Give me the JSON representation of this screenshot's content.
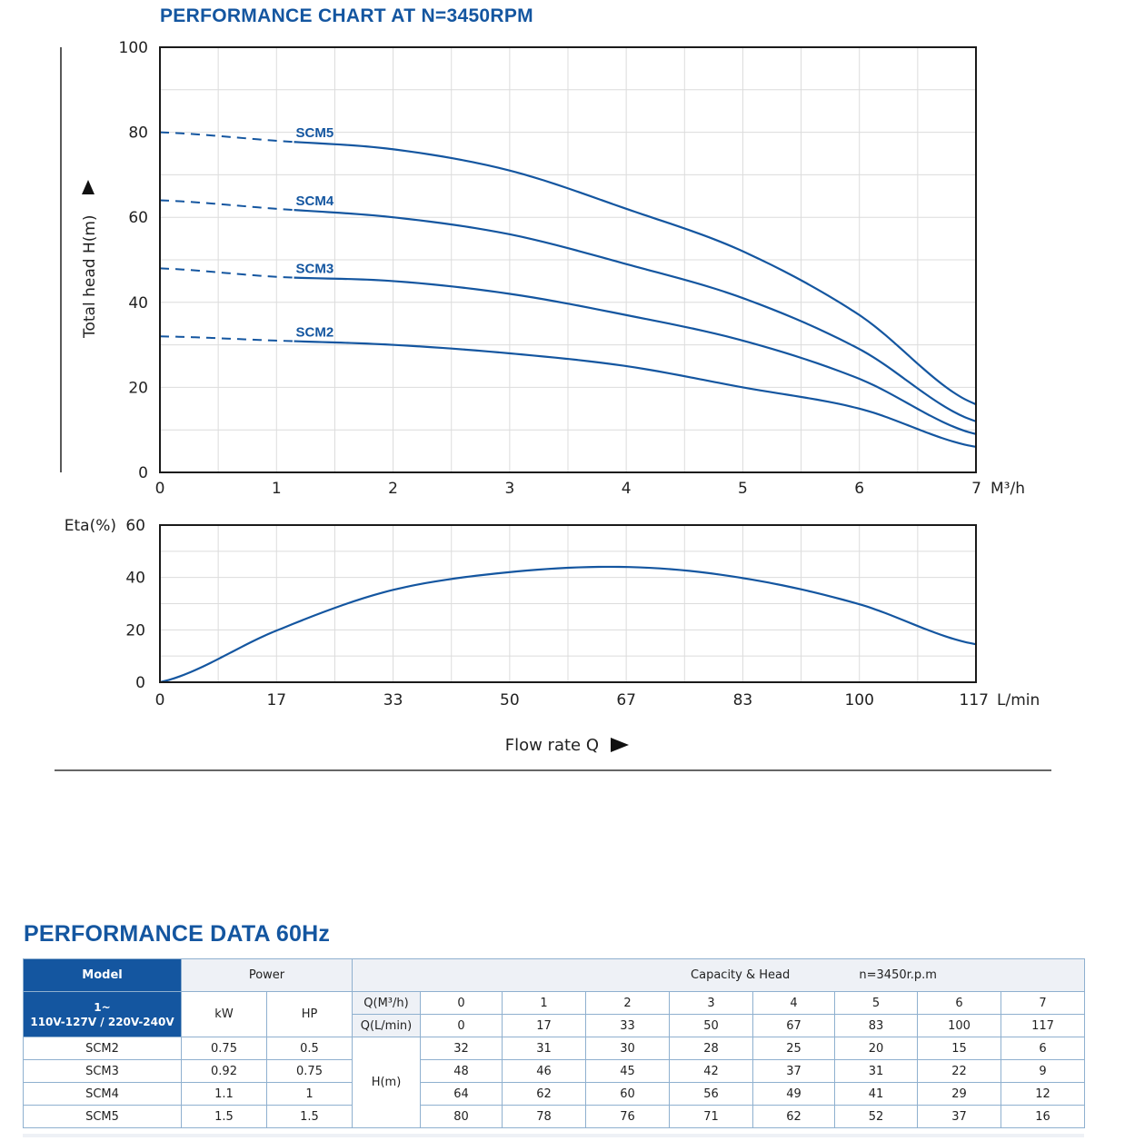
{
  "chart_title": "PERFORMANCE CHART AT N=3450RPM",
  "chart_data": [
    {
      "type": "line",
      "title": "PERFORMANCE CHART AT N=3450RPM",
      "xlabel": "M³/h",
      "ylabel": "Total head H(m)",
      "xlim": [
        0,
        7
      ],
      "ylim": [
        0,
        100
      ],
      "x_ticks": [
        "0",
        "1",
        "2",
        "3",
        "4",
        "5",
        "6",
        "7"
      ],
      "y_ticks": [
        "0",
        "20",
        "40",
        "60",
        "80",
        "100"
      ],
      "grid": true,
      "shutoff_segment_dashed_until_x": 1.15,
      "series": [
        {
          "name": "SCM5",
          "x": [
            0,
            1,
            2,
            3,
            4,
            5,
            6,
            7
          ],
          "y": [
            80,
            78,
            76,
            71,
            62,
            52,
            37,
            16
          ]
        },
        {
          "name": "SCM4",
          "x": [
            0,
            1,
            2,
            3,
            4,
            5,
            6,
            7
          ],
          "y": [
            64,
            62,
            60,
            56,
            49,
            41,
            29,
            12
          ]
        },
        {
          "name": "SCM3",
          "x": [
            0,
            1,
            2,
            3,
            4,
            5,
            6,
            7
          ],
          "y": [
            48,
            46,
            45,
            42,
            37,
            31,
            22,
            9
          ]
        },
        {
          "name": "SCM2",
          "x": [
            0,
            1,
            2,
            3,
            4,
            5,
            6,
            7
          ],
          "y": [
            32,
            31,
            30,
            28,
            25,
            20,
            15,
            6
          ]
        }
      ]
    },
    {
      "type": "line",
      "xlabel": "L/min",
      "ylabel": "Eta(%)",
      "xlim": [
        0,
        117
      ],
      "ylim": [
        0,
        60
      ],
      "x_ticks": [
        "0",
        "17",
        "33",
        "50",
        "67",
        "83",
        "100",
        "117"
      ],
      "y_ticks": [
        "0",
        "20",
        "40",
        "60"
      ],
      "grid": true,
      "axis_title": "Flow rate Q",
      "series": [
        {
          "x": [
            0,
            17,
            33,
            50,
            67,
            83,
            100,
            117
          ],
          "y": [
            0,
            20,
            35,
            42,
            44,
            40,
            30,
            14.5
          ]
        }
      ]
    }
  ],
  "table": {
    "title": "PERFORMANCE DATA 60Hz",
    "model_header": "Model",
    "power_header": "Power",
    "capacity_header": "Capacity & Head",
    "speed_note": "n=3450r.p.m",
    "phase_line1": "1~",
    "phase_line2": "110V-127V / 220V-240V",
    "kw_header": "kW",
    "hp_header": "HP",
    "q_m3h_label": "Q(M³/h)",
    "q_lmin_label": "Q(L/min)",
    "head_label": "H(m)",
    "q_m3h": [
      "0",
      "1",
      "2",
      "3",
      "4",
      "5",
      "6",
      "7"
    ],
    "q_lmin": [
      "0",
      "17",
      "33",
      "50",
      "67",
      "83",
      "100",
      "117"
    ],
    "rows": [
      {
        "model": "SCM2",
        "kw": "0.75",
        "hp": "0.5",
        "heads": [
          "32",
          "31",
          "30",
          "28",
          "25",
          "20",
          "15",
          "6"
        ]
      },
      {
        "model": "SCM3",
        "kw": "0.92",
        "hp": "0.75",
        "heads": [
          "48",
          "46",
          "45",
          "42",
          "37",
          "31",
          "22",
          "9"
        ]
      },
      {
        "model": "SCM4",
        "kw": "1.1",
        "hp": "1",
        "heads": [
          "64",
          "62",
          "60",
          "56",
          "49",
          "41",
          "29",
          "12"
        ]
      },
      {
        "model": "SCM5",
        "kw": "1.5",
        "hp": "1.5",
        "heads": [
          "80",
          "78",
          "76",
          "71",
          "62",
          "52",
          "37",
          "16"
        ]
      }
    ]
  },
  "colors": {
    "accent": "#1456a0",
    "table_border": "#8fb0cf",
    "header_bg": "#eef1f6"
  }
}
